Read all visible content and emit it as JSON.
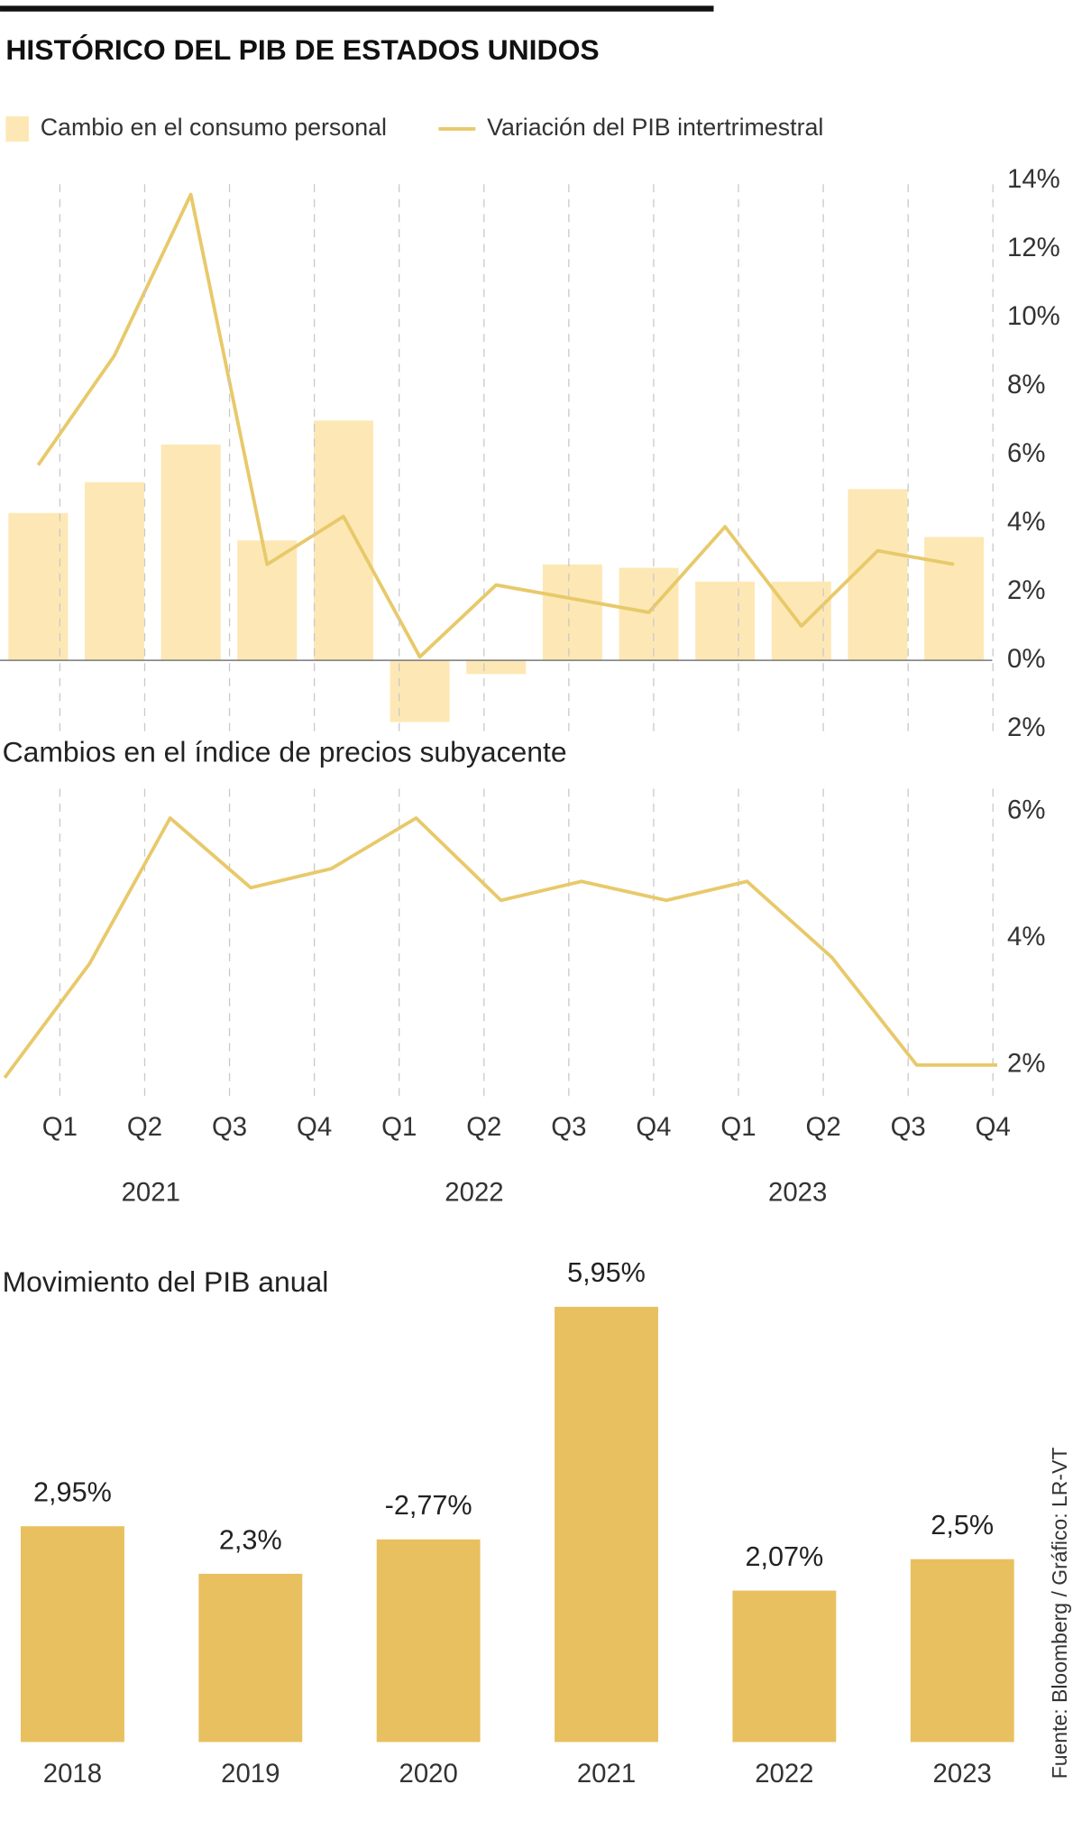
{
  "title": "HISTÓRICO DEL PIB DE ESTADOS UNIDOS",
  "source": "Fuente: Bloomberg  / Gráfico: LR-VT",
  "chart_data": [
    {
      "type": "combo",
      "categories": [
        null,
        null,
        null,
        null,
        null,
        null,
        null,
        null,
        null,
        null,
        null,
        null,
        null
      ],
      "series": [
        {
          "name": "Cambio en el consumo personal",
          "type": "bar",
          "color": "#fde8b5",
          "values": [
            4.3,
            5.2,
            6.3,
            3.5,
            7.0,
            -1.8,
            -0.4,
            2.8,
            2.7,
            2.3,
            2.3,
            5.0,
            3.6
          ]
        },
        {
          "name": "Variación del PIB intertrimestral",
          "type": "line",
          "color": "#e8c96a",
          "values": [
            5.7,
            8.9,
            13.6,
            2.8,
            4.2,
            0.1,
            2.2,
            1.8,
            1.4,
            3.9,
            1.0,
            3.2,
            2.8
          ]
        }
      ],
      "ylim": [
        -2,
        14
      ],
      "yticks": [
        {
          "value": 14,
          "label": "14%"
        },
        {
          "value": 12,
          "label": "12%"
        },
        {
          "value": 10,
          "label": "10%"
        },
        {
          "value": 8,
          "label": "8%"
        },
        {
          "value": 6,
          "label": "6%"
        },
        {
          "value": 4,
          "label": "4%"
        },
        {
          "value": 2,
          "label": "2%"
        },
        {
          "value": 0,
          "label": "0%"
        },
        {
          "value": -2,
          "label": "2%"
        }
      ]
    },
    {
      "type": "line",
      "title": "Cambios en el índice de precios subyacente",
      "x": [
        0.35,
        1.35,
        2.3,
        3.25,
        4.2,
        5.2,
        6.2,
        7.15,
        8.15,
        9.1,
        10.1,
        11.1,
        12.05
      ],
      "values": [
        1.8,
        3.6,
        5.9,
        4.8,
        5.1,
        5.9,
        4.6,
        4.9,
        4.6,
        4.9,
        3.7,
        2.0,
        2.0
      ],
      "color": "#e8c96a",
      "xlim": [
        0.3,
        12.2
      ],
      "xticks": [
        {
          "value": 1,
          "label": "Q1"
        },
        {
          "value": 2,
          "label": "Q2"
        },
        {
          "value": 3,
          "label": "Q3"
        },
        {
          "value": 4,
          "label": "Q4"
        },
        {
          "value": 5,
          "label": "Q1"
        },
        {
          "value": 6,
          "label": "Q2"
        },
        {
          "value": 7,
          "label": "Q3"
        },
        {
          "value": 8,
          "label": "Q4"
        },
        {
          "value": 9,
          "label": "Q1"
        },
        {
          "value": 10,
          "label": "Q2"
        },
        {
          "value": 11,
          "label": "Q3"
        },
        {
          "value": 12,
          "label": "Q4"
        }
      ],
      "year_labels": [
        "2021",
        "2022",
        "2023"
      ],
      "ylim": [
        1.6,
        6.4
      ],
      "yticks": [
        {
          "value": 6,
          "label": "6%"
        },
        {
          "value": 4,
          "label": "4%"
        },
        {
          "value": 2,
          "label": "2%"
        }
      ]
    },
    {
      "type": "bar",
      "title": "Movimiento del PIB anual",
      "categories": [
        "2018",
        "2019",
        "2020",
        "2021",
        "2022",
        "2023"
      ],
      "values": [
        2.95,
        2.3,
        -2.77,
        5.95,
        2.07,
        2.5
      ],
      "value_labels": [
        "2,95%",
        "2,3%",
        "-2,77%",
        "5,95%",
        "2,07%",
        "2,5%"
      ],
      "color": "#e8c060"
    }
  ]
}
